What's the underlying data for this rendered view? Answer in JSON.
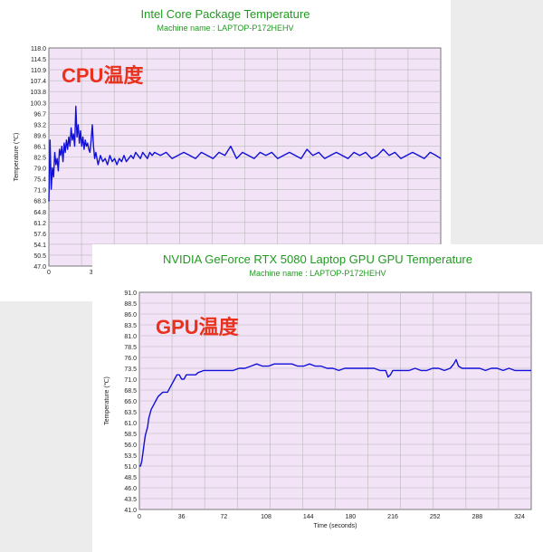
{
  "chart_data": [
    {
      "type": "line",
      "title": "Intel Core Package Temperature",
      "subtitle": "Machine name : LAPTOP-P172HEHV",
      "overlay_label": "CPU温度",
      "ylabel": "Temperature (℃)",
      "xlabel": "",
      "ylim": [
        47.0,
        118.0
      ],
      "xlim": [
        0,
        334
      ],
      "y_ticks": [
        "118.0",
        "114.5",
        "110.9",
        "107.4",
        "103.8",
        "100.3",
        "96.7",
        "93.2",
        "89.6",
        "86.1",
        "82.5",
        "79.0",
        "75.4",
        "71.9",
        "68.3",
        "64.8",
        "61.2",
        "57.6",
        "54.1",
        "50.5",
        "47.0"
      ],
      "x_ticks_visible": [
        "0",
        "3"
      ],
      "grid": true,
      "series": [
        {
          "color": "#1010d8",
          "x": [
            0,
            1,
            2,
            3,
            4,
            5,
            6,
            7,
            8,
            9,
            10,
            11,
            12,
            13,
            14,
            15,
            16,
            17,
            18,
            19,
            20,
            21,
            22,
            23,
            24,
            25,
            26,
            27,
            28,
            29,
            30,
            31,
            32,
            33,
            34,
            35,
            36,
            37,
            38,
            39,
            40,
            42,
            44,
            46,
            48,
            50,
            52,
            54,
            56,
            58,
            60,
            62,
            64,
            66,
            68,
            70,
            72,
            74,
            76,
            78,
            80,
            82,
            84,
            86,
            88,
            90,
            95,
            100,
            105,
            110,
            115,
            120,
            125,
            130,
            135,
            140,
            145,
            150,
            155,
            160,
            165,
            170,
            175,
            180,
            185,
            190,
            195,
            200,
            205,
            210,
            215,
            220,
            225,
            230,
            235,
            240,
            245,
            250,
            255,
            260,
            265,
            270,
            275,
            280,
            285,
            290,
            295,
            300,
            305,
            310,
            315,
            320,
            325,
            330,
            334
          ],
          "y": [
            68,
            88,
            72,
            79,
            76,
            84,
            80,
            82,
            78,
            85,
            83,
            86,
            81,
            87,
            84,
            88,
            85,
            89,
            86,
            92,
            88,
            90,
            86,
            99,
            89,
            93,
            87,
            91,
            86,
            89,
            85,
            88,
            86,
            87,
            85,
            84,
            88,
            93,
            86,
            82,
            84,
            80,
            83,
            81,
            82,
            80,
            83,
            81,
            82,
            80,
            82,
            81,
            83,
            81,
            82,
            83,
            82,
            84,
            83,
            82,
            84,
            83,
            82,
            84,
            83,
            84,
            83,
            84,
            82,
            83,
            84,
            83,
            82,
            84,
            83,
            82,
            84,
            83,
            86,
            82,
            84,
            83,
            82,
            84,
            83,
            84,
            82,
            83,
            84,
            83,
            82,
            85,
            83,
            84,
            82,
            83,
            84,
            83,
            82,
            84,
            83,
            84,
            82,
            83,
            85,
            83,
            84,
            82,
            83,
            84,
            83,
            82,
            84,
            83,
            82
          ]
        }
      ]
    },
    {
      "type": "line",
      "title": "NVIDIA GeForce RTX 5080 Laptop GPU GPU Temperature",
      "subtitle": "Machine name : LAPTOP-P172HEHV",
      "overlay_label": "GPU温度",
      "ylabel": "Temperature (℃)",
      "xlabel": "Time (seconds)",
      "ylim": [
        41.0,
        91.0
      ],
      "xlim": [
        0,
        334
      ],
      "y_ticks": [
        "91.0",
        "88.5",
        "86.0",
        "83.5",
        "81.0",
        "78.5",
        "76.0",
        "73.5",
        "71.0",
        "68.5",
        "66.0",
        "63.5",
        "61.0",
        "58.5",
        "56.0",
        "53.5",
        "51.0",
        "48.5",
        "46.0",
        "43.5",
        "41.0"
      ],
      "x_ticks": [
        "0",
        "36",
        "72",
        "108",
        "144",
        "180",
        "216",
        "252",
        "288",
        "324"
      ],
      "x_tick_values": [
        0,
        36,
        72,
        108,
        144,
        180,
        216,
        252,
        288,
        324
      ],
      "grid": true,
      "series": [
        {
          "color": "#1010d8",
          "x": [
            0,
            1,
            2,
            3,
            4,
            5,
            6,
            7,
            8,
            9,
            10,
            12,
            14,
            16,
            18,
            20,
            22,
            24,
            26,
            28,
            30,
            32,
            34,
            36,
            38,
            40,
            42,
            44,
            46,
            48,
            50,
            55,
            60,
            70,
            80,
            85,
            90,
            95,
            100,
            105,
            108,
            110,
            115,
            120,
            125,
            130,
            135,
            140,
            145,
            150,
            155,
            160,
            165,
            170,
            175,
            180,
            185,
            190,
            195,
            200,
            205,
            210,
            212,
            214,
            216,
            218,
            220,
            225,
            230,
            235,
            240,
            245,
            250,
            255,
            260,
            265,
            268,
            270,
            272,
            275,
            280,
            285,
            290,
            295,
            300,
            305,
            310,
            315,
            320,
            325,
            330,
            334
          ],
          "y": [
            51,
            51,
            52,
            54,
            56,
            58,
            59,
            60,
            62,
            63,
            64,
            65,
            66,
            67,
            67.5,
            68,
            68,
            68,
            69,
            70,
            71,
            72,
            72,
            71,
            71,
            72,
            72,
            72,
            72,
            72,
            72.5,
            73,
            73,
            73,
            73,
            73.5,
            73.5,
            74,
            74.5,
            74,
            74,
            74,
            74.5,
            74.5,
            74.5,
            74.5,
            74,
            74,
            74.5,
            74,
            74,
            73.5,
            73.5,
            73,
            73.5,
            73.5,
            73.5,
            73.5,
            73.5,
            73.5,
            73,
            73,
            71.5,
            72,
            73,
            73,
            73,
            73,
            73,
            73.5,
            73,
            73,
            73.5,
            73.5,
            73,
            73.5,
            74.5,
            75.5,
            74,
            73.5,
            73.5,
            73.5,
            73.5,
            73,
            73.5,
            73.5,
            73,
            73.5,
            73,
            73,
            73,
            73
          ]
        }
      ]
    }
  ]
}
